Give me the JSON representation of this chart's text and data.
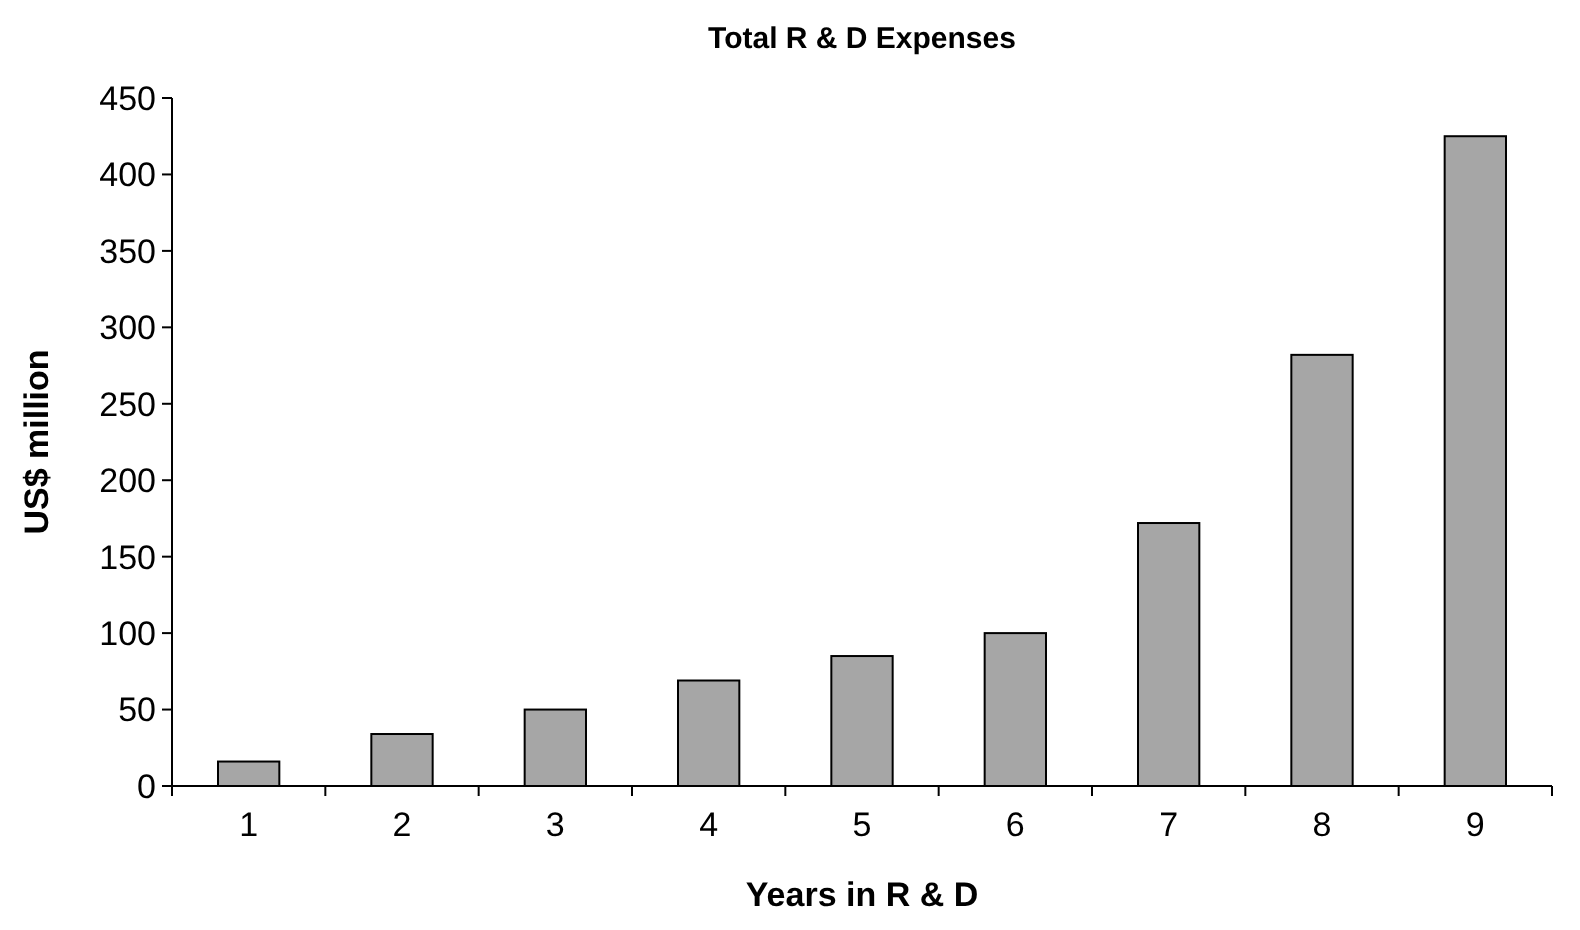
{
  "chart_data": {
    "type": "bar",
    "title": "Total R & D Expenses",
    "xlabel": "Years in R & D",
    "ylabel": "US$ million",
    "categories": [
      "1",
      "2",
      "3",
      "4",
      "5",
      "6",
      "7",
      "8",
      "9"
    ],
    "values": [
      16,
      34,
      50,
      69,
      85,
      100,
      172,
      282,
      425
    ],
    "color": "#a6a6a6",
    "ylim": [
      0,
      450
    ],
    "yticks": [
      0,
      50,
      100,
      150,
      200,
      250,
      300,
      350,
      400,
      450
    ],
    "grid": false
  }
}
